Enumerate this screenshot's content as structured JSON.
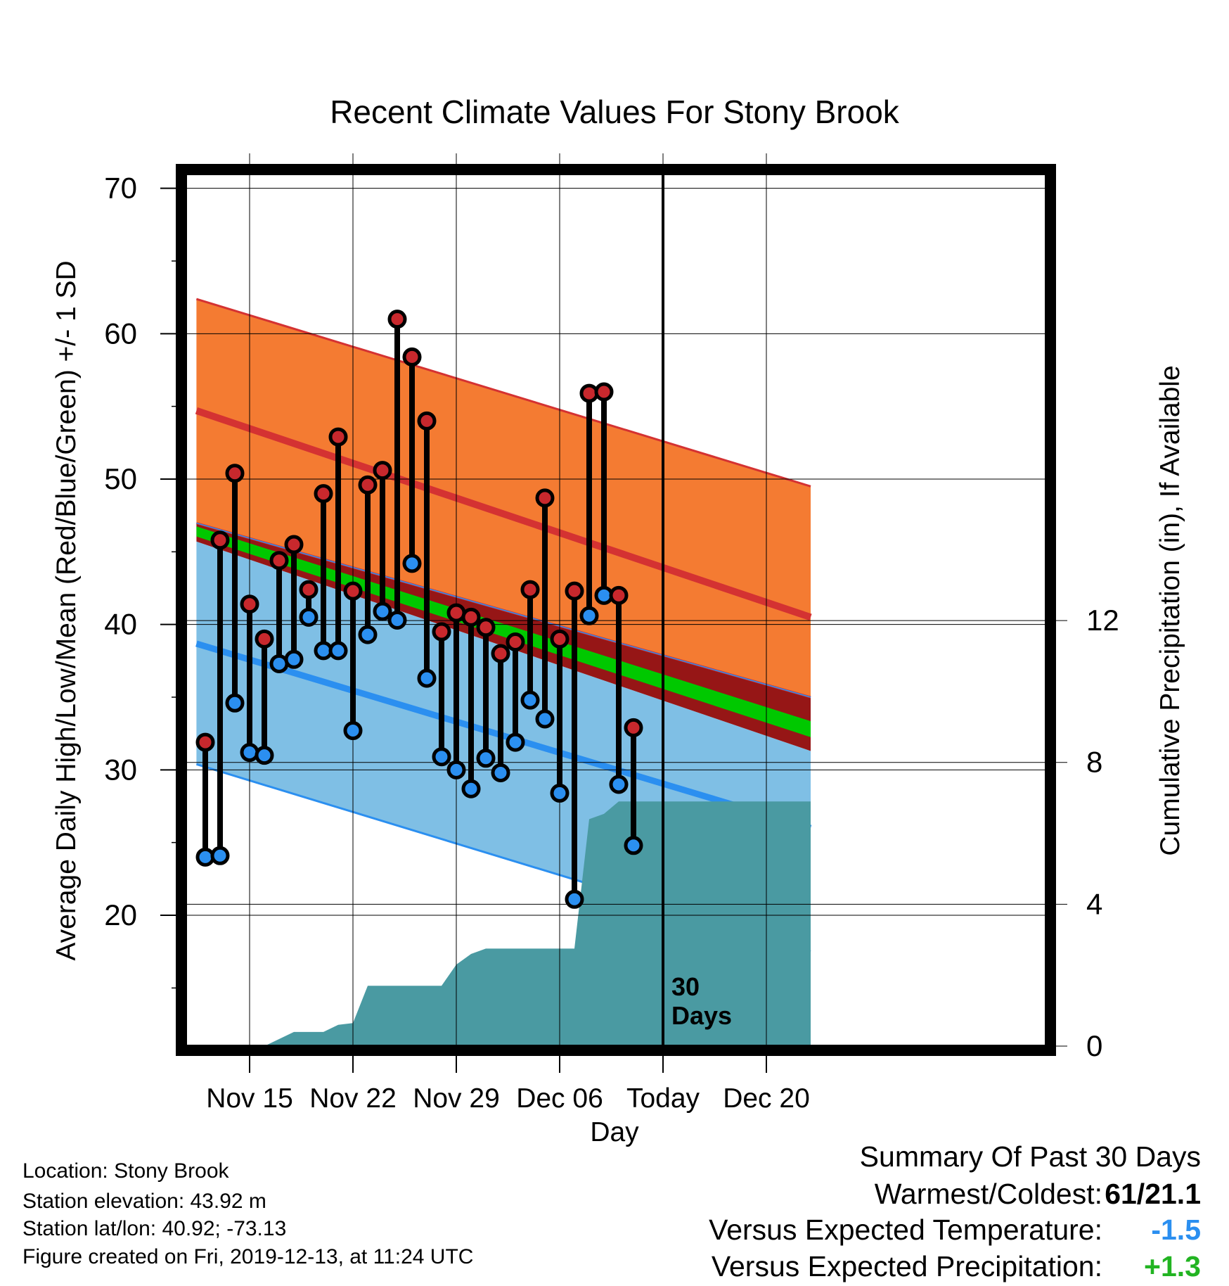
{
  "chart_data": {
    "type": "line",
    "title": "Recent Climate Values For Stony Brook",
    "xlabel": "Day",
    "ylabel": "Average Daily High/Low/Mean (Red/Blue/Green) +/- 1 SD",
    "y2label": "Cumulative Precipitation (in), If Available",
    "x_start": "Nov 12",
    "x_end": "Dec 23",
    "x_ticks": [
      {
        "day": 3,
        "label": "Nov 15"
      },
      {
        "day": 10,
        "label": "Nov 22"
      },
      {
        "day": 17,
        "label": "Nov 29"
      },
      {
        "day": 24,
        "label": "Dec 06"
      },
      {
        "day": 31,
        "label": "Today"
      },
      {
        "day": 38,
        "label": "Dec 20"
      }
    ],
    "ylim": [
      11,
      71
    ],
    "y_ticks": [
      20,
      30,
      40,
      50,
      60,
      70
    ],
    "y2lim": [
      0,
      24.6
    ],
    "y2_ticks": [
      0,
      4,
      8,
      12
    ],
    "grid": true,
    "today_day": 31,
    "today_label": [
      "30",
      "Days"
    ],
    "normals": {
      "days": [
        0,
        41
      ],
      "high_upper": [
        62.2,
        49.5
      ],
      "high_mean": [
        54.5,
        40.5
      ],
      "high_lower": [
        46.8,
        35.0
      ],
      "mean": [
        46.2,
        32.8
      ],
      "low_upper": [
        45.5,
        31.3
      ],
      "low_mean": [
        38.5,
        26.0
      ],
      "low_lower": [
        30.2,
        17.5
      ]
    },
    "observed": {
      "days": [
        0,
        1,
        2,
        3,
        4,
        5,
        6,
        7,
        8,
        9,
        10,
        11,
        12,
        13,
        14,
        15,
        16,
        17,
        18,
        19,
        20,
        21,
        22,
        23,
        24,
        25,
        26,
        27,
        28,
        29,
        30
      ],
      "high": [
        31.9,
        45.8,
        50.4,
        41.4,
        39.0,
        44.4,
        45.5,
        42.4,
        49.0,
        52.9,
        42.3,
        49.6,
        50.6,
        61.0,
        58.4,
        54.0,
        39.5,
        40.8,
        40.5,
        39.8,
        38.0,
        38.8,
        42.4,
        48.7,
        39.0,
        42.3,
        55.9,
        56.0,
        42.0,
        32.9,
        null
      ],
      "low": [
        24.0,
        24.1,
        34.6,
        31.2,
        31.0,
        37.3,
        37.6,
        40.5,
        38.2,
        38.2,
        32.7,
        39.3,
        40.9,
        40.3,
        44.2,
        36.3,
        30.9,
        30.0,
        28.7,
        30.8,
        29.8,
        31.9,
        34.8,
        33.5,
        28.4,
        21.1,
        40.6,
        42.0,
        29.0,
        24.8,
        null
      ]
    },
    "precip_cumulative": {
      "days": [
        0,
        4,
        6,
        8,
        9,
        10,
        11,
        16,
        17,
        18,
        19,
        20,
        25,
        26,
        27,
        28,
        41
      ],
      "values": [
        0,
        0,
        0.4,
        0.4,
        0.6,
        0.65,
        1.7,
        1.7,
        2.3,
        2.6,
        2.75,
        2.75,
        2.75,
        6.4,
        6.55,
        6.9,
        6.9
      ]
    },
    "colors": {
      "high_band": "#f47b32",
      "high_line": "#d43232",
      "low_band": "#7fbfe5",
      "low_line": "#2b8ff0",
      "mean_band": "#00c800",
      "overlap": "#961616",
      "precip": "#4a9aa2",
      "high_dot": "#c8282d",
      "low_dot": "#2b8ff0"
    }
  },
  "station_info": {
    "location": "Location: Stony Brook",
    "elevation": "Station elevation: 43.92 m",
    "latlon": "Station lat/lon: 40.92; -73.13",
    "created": "Figure created on Fri, 2019-12-13, at 11:24 UTC"
  },
  "summary": {
    "title": "Summary Of Past 30 Days",
    "warm_cold_label": "Warmest/Coldest:",
    "warm_cold_value": "61/21.1",
    "temp_label": "Versus Expected Temperature:",
    "temp_value": "-1.5",
    "temp_color": "#2b8ff0",
    "precip_label": "Versus Expected Precipitation:",
    "precip_value": "+1.3",
    "precip_color": "#22b422"
  }
}
